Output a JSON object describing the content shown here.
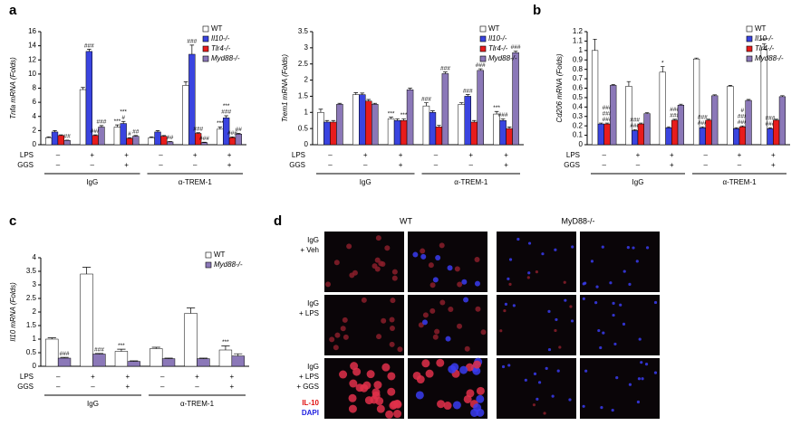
{
  "panel_labels": [
    "a",
    "b",
    "c",
    "d"
  ],
  "chart_data": [
    {
      "type": "bar",
      "ylabel": "Tnfa mRNA (Folds)",
      "categories": [
        null,
        null,
        null,
        null,
        null,
        null
      ],
      "ylim": [
        0,
        16
      ],
      "yticks": [
        0,
        2,
        4,
        6,
        8,
        10,
        12,
        14,
        16
      ],
      "series": [
        {
          "name": "WT",
          "color": "#ffffff",
          "values": [
            1.0,
            7.8,
            2.5,
            1.0,
            8.4,
            2.2
          ],
          "errors": [
            0.1,
            0.3,
            0.3,
            0.1,
            0.5,
            0.3
          ],
          "annotations": [
            null,
            null,
            [
              "***"
            ],
            null,
            null,
            [
              "***"
            ]
          ]
        },
        {
          "name": "Il10-/-",
          "color": "#3a44e0",
          "values": [
            1.8,
            13.2,
            3.0,
            1.8,
            12.8,
            3.8
          ],
          "errors": [
            0.2,
            0.3,
            0.3,
            0.2,
            1.3,
            0.3
          ],
          "annotations": [
            null,
            [
              "###"
            ],
            [
              "***",
              "#"
            ],
            null,
            [
              "###"
            ],
            [
              "***",
              "###"
            ]
          ]
        },
        {
          "name": "Tlr4-/-",
          "color": "#e81c1c",
          "values": [
            1.3,
            1.3,
            0.9,
            1.2,
            1.6,
            1.0
          ],
          "errors": [
            0.1,
            0.1,
            0.1,
            0.1,
            0.1,
            0.1
          ],
          "annotations": [
            null,
            [
              "###"
            ],
            [
              "#"
            ],
            null,
            [
              "###"
            ],
            [
              "###"
            ]
          ]
        },
        {
          "name": "Myd88-/-",
          "color": "#8b78b8",
          "values": [
            0.6,
            2.5,
            1.2,
            0.4,
            0.3,
            1.5
          ],
          "errors": [
            0.05,
            0.2,
            0.1,
            0.05,
            0.05,
            0.1
          ],
          "annotations": [
            [
              "##"
            ],
            [
              "###"
            ],
            [
              "##"
            ],
            [
              "##"
            ],
            [
              "###"
            ],
            [
              "##"
            ]
          ]
        }
      ],
      "conditions": [
        {
          "name": "LPS",
          "values": [
            "–",
            "+",
            "+",
            "–",
            "+",
            "+"
          ]
        },
        {
          "name": "GGS",
          "values": [
            "–",
            "–",
            "+",
            "–",
            "–",
            "+"
          ]
        }
      ],
      "groups": [
        "IgG",
        "α-TREM-1"
      ]
    },
    {
      "type": "bar",
      "ylabel": "Trem1 mRNA (Folds)",
      "categories": [
        null,
        null,
        null,
        null,
        null,
        null
      ],
      "ylim": [
        0,
        3.5
      ],
      "yticks": [
        0,
        0.5,
        1,
        1.5,
        2,
        2.5,
        3,
        3.5
      ],
      "series": [
        {
          "name": "WT",
          "color": "#ffffff",
          "values": [
            1.0,
            1.55,
            0.8,
            1.2,
            1.25,
            0.95
          ],
          "errors": [
            0.1,
            0.06,
            0.05,
            0.1,
            0.05,
            0.08
          ],
          "annotations": [
            null,
            null,
            [
              "***"
            ],
            [
              "###"
            ],
            null,
            [
              "***"
            ]
          ]
        },
        {
          "name": "Il10-/-",
          "color": "#3a44e0",
          "values": [
            0.7,
            1.55,
            0.75,
            1.0,
            1.5,
            0.75
          ],
          "errors": [
            0.05,
            0.05,
            0.05,
            0.05,
            0.05,
            0.05
          ],
          "annotations": [
            null,
            null,
            null,
            null,
            [
              "###"
            ],
            [
              "###"
            ]
          ]
        },
        {
          "name": "Tlr4-/-",
          "color": "#e81c1c",
          "values": [
            0.7,
            1.35,
            0.75,
            0.55,
            0.7,
            0.5
          ],
          "errors": [
            0.05,
            0.05,
            0.05,
            0.05,
            0.05,
            0.05
          ],
          "annotations": [
            null,
            null,
            [
              "***"
            ],
            null,
            null,
            null
          ]
        },
        {
          "name": "Myd88-/-",
          "color": "#8b78b8",
          "values": [
            1.25,
            1.25,
            1.7,
            2.2,
            2.3,
            2.85
          ],
          "errors": [
            0.03,
            0.03,
            0.05,
            0.05,
            0.05,
            0.05
          ],
          "annotations": [
            null,
            null,
            null,
            [
              "###"
            ],
            [
              "###"
            ],
            [
              "###"
            ]
          ]
        }
      ],
      "conditions": [
        {
          "name": "LPS",
          "values": [
            "–",
            "+",
            "+",
            "–",
            "+",
            "+"
          ]
        },
        {
          "name": "GGS",
          "values": [
            "–",
            "–",
            "+",
            "–",
            "–",
            "+"
          ]
        }
      ],
      "groups": [
        "IgG",
        "α-TREM-1"
      ]
    },
    {
      "type": "bar",
      "ylabel": "Cd206 mRNA (Folds)",
      "categories": [
        null,
        null,
        null,
        null,
        null,
        null
      ],
      "ylim": [
        0,
        1.2
      ],
      "yticks": [
        0,
        0.1,
        0.2,
        0.3,
        0.4,
        0.5,
        0.6,
        0.7,
        0.8,
        0.9,
        1,
        1.1,
        1.2
      ],
      "series": [
        {
          "name": "WT",
          "color": "#ffffff",
          "values": [
            1.0,
            0.62,
            0.77,
            0.91,
            0.62,
            1.01
          ],
          "errors": [
            0.12,
            0.05,
            0.06,
            0.01,
            0.01,
            0.06
          ],
          "annotations": [
            null,
            null,
            [
              "*"
            ],
            null,
            null,
            [
              "***"
            ]
          ]
        },
        {
          "name": "Il10-/-",
          "color": "#3a44e0",
          "values": [
            0.22,
            0.15,
            0.18,
            0.18,
            0.17,
            0.17
          ],
          "errors": [
            0.01,
            0.01,
            0.01,
            0.01,
            0.01,
            0.01
          ],
          "annotations": [
            null,
            [
              "###",
              "###"
            ],
            null,
            [
              "###",
              "###"
            ],
            null,
            [
              "###",
              "###"
            ]
          ]
        },
        {
          "name": "Tlr4-/-",
          "color": "#e81c1c",
          "values": [
            0.22,
            0.22,
            0.26,
            0.26,
            0.19,
            0.26
          ],
          "errors": [
            0.01,
            0.01,
            0.01,
            0.01,
            0.01,
            0.01
          ],
          "annotations": [
            [
              "###",
              "###",
              "###"
            ],
            null,
            [
              "###",
              "###"
            ],
            null,
            [
              "#",
              "###",
              "###"
            ],
            null
          ]
        },
        {
          "name": "Myd88-/-",
          "color": "#8b78b8",
          "values": [
            0.63,
            0.33,
            0.42,
            0.52,
            0.47,
            0.51
          ],
          "errors": [
            0.01,
            0.01,
            0.01,
            0.01,
            0.01,
            0.01
          ],
          "annotations": [
            null,
            null,
            null,
            null,
            null,
            null
          ]
        }
      ],
      "conditions": [
        {
          "name": "LPS",
          "values": [
            "–",
            "+",
            "+",
            "–",
            "+",
            "+"
          ]
        },
        {
          "name": "GGS",
          "values": [
            "–",
            "–",
            "+",
            "–",
            "–",
            "+"
          ]
        }
      ],
      "groups": [
        "IgG",
        "α-TREM-1"
      ]
    },
    {
      "type": "bar",
      "ylabel": "Il10 mRNA (Folds)",
      "categories": [
        null,
        null,
        null,
        null,
        null,
        null
      ],
      "ylim": [
        0,
        4
      ],
      "yticks": [
        0,
        0.5,
        1,
        1.5,
        2,
        2.5,
        3,
        3.5,
        4
      ],
      "series": [
        {
          "name": "WT",
          "color": "#ffffff",
          "values": [
            1.0,
            3.4,
            0.55,
            0.65,
            1.95,
            0.6
          ],
          "errors": [
            0.05,
            0.25,
            0.08,
            0.05,
            0.2,
            0.15
          ],
          "annotations": [
            null,
            null,
            [
              "***"
            ],
            null,
            null,
            [
              "***"
            ]
          ]
        },
        {
          "name": "Myd88-/-",
          "color": "#8b78b8",
          "values": [
            0.3,
            0.45,
            0.18,
            0.28,
            0.28,
            0.38
          ],
          "errors": [
            0.03,
            0.02,
            0.02,
            0.02,
            0.02,
            0.08
          ],
          "annotations": [
            [
              "###"
            ],
            [
              "###"
            ],
            null,
            null,
            null,
            null
          ]
        }
      ],
      "conditions": [
        {
          "name": "LPS",
          "values": [
            "–",
            "+",
            "+",
            "–",
            "+",
            "+"
          ]
        },
        {
          "name": "GGS",
          "values": [
            "–",
            "–",
            "+",
            "–",
            "–",
            "+"
          ]
        }
      ],
      "groups": [
        "IgG",
        "α-TREM-1"
      ]
    }
  ],
  "images": {
    "columns": [
      "WT",
      "MyD88-/-"
    ],
    "rows": [
      [
        "IgG",
        "+ Veh"
      ],
      [
        "IgG",
        "+ LPS"
      ],
      [
        "IgG",
        "+ LPS",
        "+ GGS"
      ]
    ],
    "stain_labels": [
      "IL-10",
      "DAPI"
    ]
  }
}
